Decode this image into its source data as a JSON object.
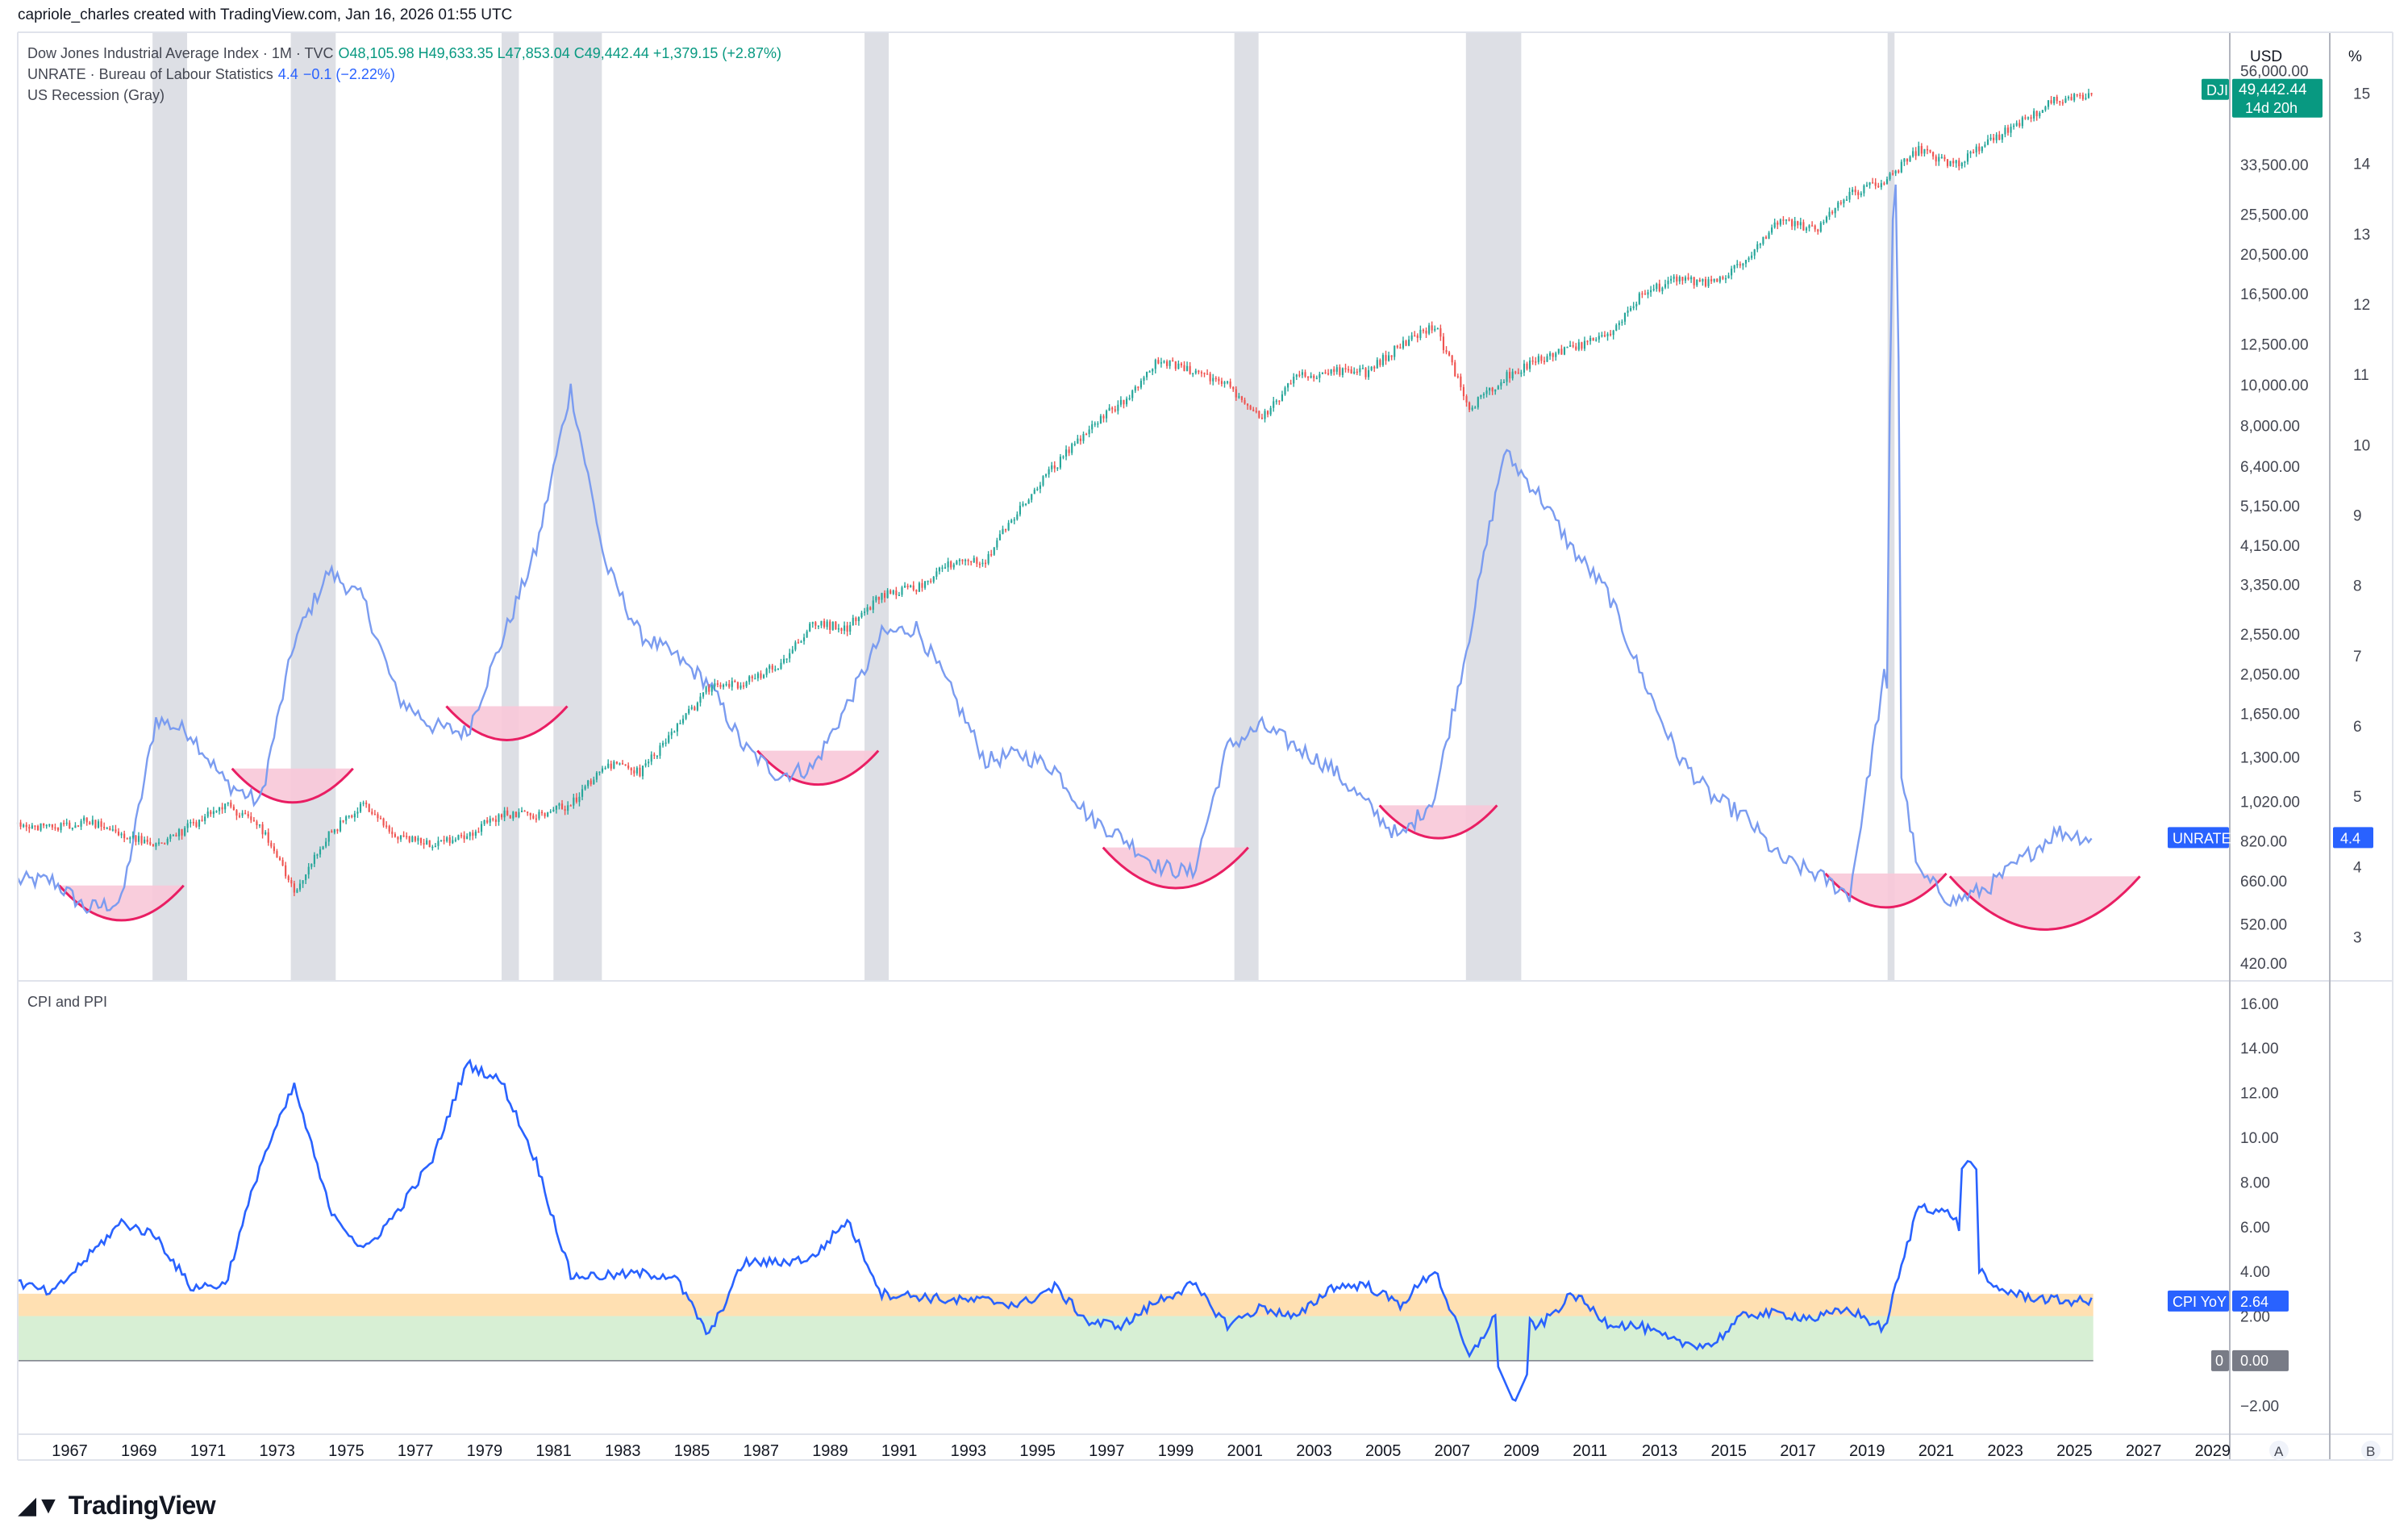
{
  "header": {
    "attribution": "capriole_charles created with TradingView.com, Jan 16, 2026 01:55 UTC"
  },
  "legend": {
    "dji_title": "Dow Jones Industrial Average Index · 1M · TVC",
    "dji_ohlc": "O48,105.98  H49,633.35  L47,853.04  C49,442.44  +1,379.15 (+2.87%)",
    "unrate_title": "UNRATE · Bureau of Labour Statistics",
    "unrate_value": "4.4",
    "unrate_change": "−0.1 (−2.22%)",
    "recession": "US Recession (Gray)",
    "cpi_title": "CPI and PPI"
  },
  "axes": {
    "currency": "USD",
    "percent": "%",
    "price_ticks": [
      "56,000.00",
      "33,500.00",
      "25,500.00",
      "20,500.00",
      "16,500.00",
      "12,500.00",
      "10,000.00",
      "8,000.00",
      "6,400.00",
      "5,150.00",
      "4,150.00",
      "3,350.00",
      "2,550.00",
      "2,050.00",
      "1,650.00",
      "1,300.00",
      "1,020.00",
      "820.00",
      "660.00",
      "520.00",
      "420.00"
    ],
    "unrate_ticks": [
      "15",
      "14",
      "13",
      "12",
      "11",
      "10",
      "9",
      "8",
      "7",
      "6",
      "5",
      "4",
      "3"
    ],
    "cpi_ticks": [
      "16.00",
      "14.00",
      "12.00",
      "10.00",
      "8.00",
      "6.00",
      "4.00",
      "2.00",
      "0",
      "−2.00"
    ],
    "cpi_zero": "0.00",
    "x_ticks": [
      "1967",
      "1969",
      "1971",
      "1973",
      "1975",
      "1977",
      "1979",
      "1981",
      "1983",
      "1985",
      "1987",
      "1989",
      "1991",
      "1993",
      "1995",
      "1997",
      "1999",
      "2001",
      "2003",
      "2005",
      "2007",
      "2009",
      "2011",
      "2013",
      "2015",
      "2017",
      "2019",
      "2021",
      "2023",
      "2025",
      "2027",
      "2029"
    ],
    "bottom_buttons": [
      "A",
      "B"
    ]
  },
  "badges": {
    "dji_label": "DJI",
    "dji_price": "49,442.44",
    "dji_time": "14d 20h",
    "unrate_label": "UNRATE",
    "unrate_value": "4.4",
    "cpi_label": "CPI YoY",
    "cpi_value": "2.64",
    "zero_label": "0",
    "zero_value": "0.00"
  },
  "colors": {
    "up": "#26a69a",
    "down": "#ef5350",
    "unrate": "#7b9cf0",
    "cpi": "#2962ff",
    "recession": "#d1d4dc",
    "bowl_fill": "#f8c8d8",
    "bowl_stroke": "#e91e63",
    "band_orange": "#ffe0b2",
    "band_green": "#d7efd4",
    "badge_green": "#089981",
    "badge_blue": "#2962ff"
  },
  "branding": {
    "logo": "TradingView"
  },
  "chart_data": [
    {
      "type": "line",
      "name": "Dow Jones Industrial Average Index (monthly candles, log scale)",
      "x": [
        1966,
        1967,
        1968,
        1969,
        1970,
        1971,
        1972,
        1973,
        1974,
        1975,
        1976,
        1977,
        1978,
        1979,
        1980,
        1981,
        1982,
        1983,
        1984,
        1985,
        1986,
        1987,
        1988,
        1989,
        1990,
        1991,
        1992,
        1993,
        1994,
        1995,
        1996,
        1997,
        1998,
        1999,
        2000,
        2001,
        2002,
        2003,
        2004,
        2005,
        2006,
        2007,
        2008,
        2009,
        2010,
        2011,
        2012,
        2013,
        2014,
        2015,
        2016,
        2017,
        2018,
        2019,
        2020,
        2021,
        2022,
        2023,
        2024,
        2025,
        2026
      ],
      "values": [
        900,
        880,
        920,
        850,
        800,
        890,
        1000,
        900,
        620,
        850,
        1000,
        830,
        810,
        850,
        950,
        950,
        1000,
        1250,
        1200,
        1500,
        1900,
        1950,
        2150,
        2700,
        2650,
        3150,
        3300,
        3750,
        3850,
        5100,
        6400,
        7900,
        9200,
        11400,
        10800,
        10000,
        8400,
        10400,
        10800,
        10700,
        12400,
        13900,
        8800,
        10400,
        11500,
        12200,
        13100,
        16500,
        17800,
        17400,
        19700,
        24700,
        23300,
        28500,
        30600,
        36300,
        33100,
        37700,
        42500,
        48000,
        49442.44
      ],
      "ylim": [
        400,
        60000
      ],
      "scale": "log"
    },
    {
      "type": "line",
      "name": "UNRATE",
      "x": [
        1966,
        1967,
        1968,
        1969,
        1970,
        1971,
        1972,
        1973,
        1974,
        1975,
        1976,
        1977,
        1978,
        1979,
        1980,
        1981,
        1982,
        1983,
        1984,
        1985,
        1986,
        1987,
        1988,
        1989,
        1990,
        1991,
        1992,
        1993,
        1994,
        1995,
        1996,
        1997,
        1998,
        1999,
        2000,
        2001,
        2002,
        2003,
        2004,
        2005,
        2006,
        2007,
        2008,
        2009,
        2010,
        2011,
        2012,
        2013,
        2014,
        2015,
        2016,
        2017,
        2018,
        2019,
        2020,
        2021,
        2022,
        2023,
        2024,
        2025,
        2026
      ],
      "values": [
        3.8,
        3.8,
        3.4,
        3.5,
        6.1,
        5.9,
        5.2,
        4.9,
        7.2,
        8.2,
        7.8,
        6.4,
        6.0,
        5.9,
        7.2,
        8.5,
        10.8,
        8.3,
        7.3,
        7.0,
        6.6,
        5.7,
        5.3,
        5.4,
        6.3,
        7.3,
        7.4,
        6.5,
        5.5,
        5.6,
        5.4,
        4.7,
        4.4,
        4.0,
        3.9,
        5.7,
        6.0,
        5.7,
        5.4,
        4.9,
        4.4,
        5.0,
        7.3,
        9.9,
        9.3,
        8.5,
        7.9,
        6.7,
        5.6,
        5.0,
        4.7,
        4.1,
        3.9,
        3.6,
        6.7,
        3.9,
        3.5,
        3.7,
        4.1,
        4.5,
        4.4
      ],
      "extra_points": [
        {
          "x": 2020.3,
          "value": 14.7
        }
      ],
      "ylim": [
        2.5,
        15.5
      ]
    },
    {
      "type": "line",
      "name": "CPI YoY",
      "x": [
        1966,
        1967,
        1968,
        1969,
        1970,
        1971,
        1972,
        1973,
        1974,
        1975,
        1976,
        1977,
        1978,
        1979,
        1980,
        1981,
        1982,
        1983,
        1984,
        1985,
        1986,
        1987,
        1988,
        1989,
        1990,
        1991,
        1992,
        1993,
        1994,
        1995,
        1996,
        1997,
        1998,
        1999,
        2000,
        2001,
        2002,
        2003,
        2004,
        2005,
        2006,
        2007,
        2008,
        2009,
        2010,
        2011,
        2012,
        2013,
        2014,
        2015,
        2016,
        2017,
        2018,
        2019,
        2020,
        2021,
        2022,
        2023,
        2024,
        2025,
        2026
      ],
      "values": [
        3.5,
        3.0,
        4.6,
        6.2,
        5.6,
        3.3,
        3.4,
        8.7,
        12.3,
        6.9,
        4.9,
        6.7,
        9.0,
        13.3,
        12.5,
        8.9,
        3.8,
        3.8,
        3.9,
        3.8,
        1.1,
        4.4,
        4.4,
        4.6,
        6.3,
        3.0,
        2.9,
        2.7,
        2.7,
        2.5,
        3.3,
        1.7,
        1.6,
        2.7,
        3.4,
        1.6,
        2.4,
        1.9,
        3.3,
        3.4,
        2.5,
        4.1,
        0.1,
        2.7,
        1.5,
        3.0,
        1.7,
        1.5,
        0.8,
        0.7,
        2.1,
        2.1,
        1.9,
        2.3,
        1.4,
        7.0,
        6.5,
        3.4,
        2.9,
        2.7,
        2.64
      ],
      "ylim": [
        -3,
        16.5
      ],
      "bands": [
        {
          "from": 0,
          "to": 2,
          "color": "green"
        },
        {
          "from": 2,
          "to": 3,
          "color": "orange"
        }
      ]
    }
  ],
  "recessions": [
    [
      1969.9,
      1970.9
    ],
    [
      1973.9,
      1975.2
    ],
    [
      1980.0,
      1980.5
    ],
    [
      1981.5,
      1982.9
    ],
    [
      1990.5,
      1991.2
    ],
    [
      2001.2,
      2001.9
    ],
    [
      2007.9,
      2009.5
    ],
    [
      2020.1,
      2020.3
    ]
  ],
  "bowls": [
    [
      1967.2,
      1970.8
    ],
    [
      1972.2,
      1975.7
    ],
    [
      1978.4,
      1981.9
    ],
    [
      1987.4,
      1990.9
    ],
    [
      1997.4,
      2001.6
    ],
    [
      2005.4,
      2008.8
    ],
    [
      2018.3,
      2021.8
    ],
    [
      2021.9,
      2027.4
    ]
  ]
}
